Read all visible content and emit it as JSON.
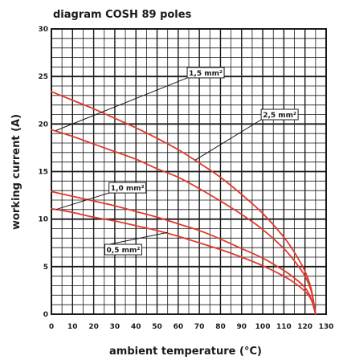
{
  "chart_data": {
    "type": "line",
    "title": "diagram COSH 89 poles",
    "xlabel": "ambient temperature (°C)",
    "ylabel": "working current (A)",
    "xlim": [
      0,
      130
    ],
    "ylim": [
      0,
      30
    ],
    "x_major_ticks": [
      0,
      10,
      20,
      30,
      40,
      50,
      60,
      70,
      80,
      90,
      100,
      110,
      120,
      130
    ],
    "y_major_ticks": [
      0,
      5,
      10,
      15,
      20,
      25,
      30
    ],
    "x_tick_labels": [
      "0",
      "10",
      "20",
      "30",
      "40",
      "50",
      "60",
      "70",
      "80",
      "90",
      "100",
      "110",
      "120",
      "130"
    ],
    "y_tick_labels": [
      "0",
      "5",
      "10",
      "15",
      "20",
      "25",
      "30"
    ],
    "grid": true,
    "line_color": "#e03a2c",
    "grid_color": "#1a1a1a",
    "series": [
      {
        "name": "1,5 mm²",
        "x": [
          0,
          10,
          20,
          30,
          40,
          50,
          60,
          70,
          80,
          90,
          100,
          110,
          115,
          120,
          123,
          125
        ],
        "y": [
          19.4,
          18.7,
          17.9,
          17.1,
          16.3,
          15.3,
          14.4,
          13.2,
          11.9,
          10.5,
          8.9,
          6.9,
          5.6,
          4.0,
          2.4,
          0.0
        ]
      },
      {
        "name": "2,5 mm²",
        "x": [
          0,
          10,
          20,
          30,
          40,
          50,
          60,
          70,
          80,
          90,
          100,
          110,
          115,
          120,
          123,
          125
        ],
        "y": [
          23.4,
          22.5,
          21.6,
          20.6,
          19.6,
          18.5,
          17.3,
          15.9,
          14.4,
          12.6,
          10.6,
          8.1,
          6.5,
          4.5,
          2.6,
          0.0
        ]
      },
      {
        "name": "1,0 mm²",
        "x": [
          0,
          10,
          20,
          30,
          40,
          50,
          60,
          70,
          80,
          90,
          100,
          110,
          115,
          120,
          123,
          125
        ],
        "y": [
          12.9,
          12.4,
          11.9,
          11.4,
          10.8,
          10.2,
          9.5,
          8.8,
          7.9,
          6.9,
          5.9,
          4.6,
          3.8,
          2.8,
          1.6,
          0.0
        ]
      },
      {
        "name": "0,5 mm²",
        "x": [
          0,
          10,
          20,
          30,
          40,
          50,
          60,
          70,
          80,
          90,
          100,
          110,
          115,
          120,
          123,
          125
        ],
        "y": [
          11.1,
          10.7,
          10.2,
          9.8,
          9.3,
          8.8,
          8.2,
          7.5,
          6.8,
          6.0,
          5.1,
          4.0,
          3.3,
          2.4,
          1.5,
          0.0
        ]
      }
    ],
    "annotations": [
      {
        "text": "1,5 mm²",
        "series": "1,5 mm²",
        "box_x": 73,
        "box_y": 25.4,
        "pointer_x": 2,
        "pointer_y": 19.3
      },
      {
        "text": "2,5 mm²",
        "series": "2,5 mm²",
        "box_x": 108,
        "box_y": 21.0,
        "pointer_x": 68,
        "pointer_y": 16.2
      },
      {
        "text": "1,0 mm²",
        "series": "1,0 mm²",
        "box_x": 36,
        "box_y": 13.3,
        "pointer_x": 2,
        "pointer_y": 11.0
      },
      {
        "text": "0,5 mm²",
        "series": "0,5 mm²",
        "box_x": 34,
        "box_y": 6.8,
        "pointer_x": 55,
        "pointer_y": 8.6
      }
    ]
  }
}
